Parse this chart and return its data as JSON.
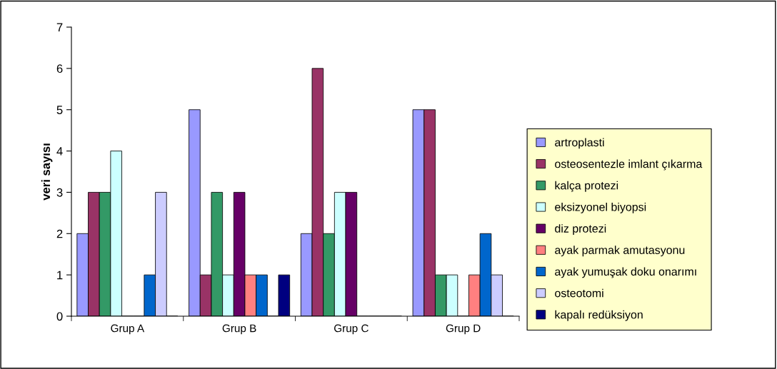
{
  "chart_data": {
    "type": "bar",
    "ylabel": "veri sayısı",
    "categories": [
      "Grup A",
      "Grup B",
      "Grup C",
      "Grup D"
    ],
    "series": [
      {
        "name": "artroplasti",
        "color": "#9999ff",
        "values": [
          2,
          5,
          2,
          5
        ]
      },
      {
        "name": "osteosentezle imlant çıkarma",
        "color": "#993366",
        "values": [
          3,
          1,
          6,
          5
        ]
      },
      {
        "name": "kalça protezi",
        "color": "#339966",
        "values": [
          3,
          3,
          2,
          1
        ]
      },
      {
        "name": "eksizyonel biyopsi",
        "color": "#ccffff",
        "values": [
          4,
          1,
          3,
          1
        ]
      },
      {
        "name": "diz protezi",
        "color": "#660066",
        "values": [
          0,
          3,
          3,
          0
        ]
      },
      {
        "name": "ayak parmak amutasyonu",
        "color": "#ff8080",
        "values": [
          0,
          1,
          0,
          1
        ]
      },
      {
        "name": "ayak yumuşak doku onarımı",
        "color": "#0066cc",
        "values": [
          1,
          1,
          0,
          2
        ]
      },
      {
        "name": "osteotomi",
        "color": "#ccccff",
        "values": [
          3,
          0,
          0,
          1
        ]
      },
      {
        "name": "kapalı redüksiyon",
        "color": "#000080",
        "values": [
          0,
          1,
          0,
          0
        ]
      }
    ],
    "ylim": [
      0,
      7
    ],
    "yticks": [
      0,
      1,
      2,
      3,
      4,
      5,
      6,
      7
    ],
    "legend": "right"
  }
}
